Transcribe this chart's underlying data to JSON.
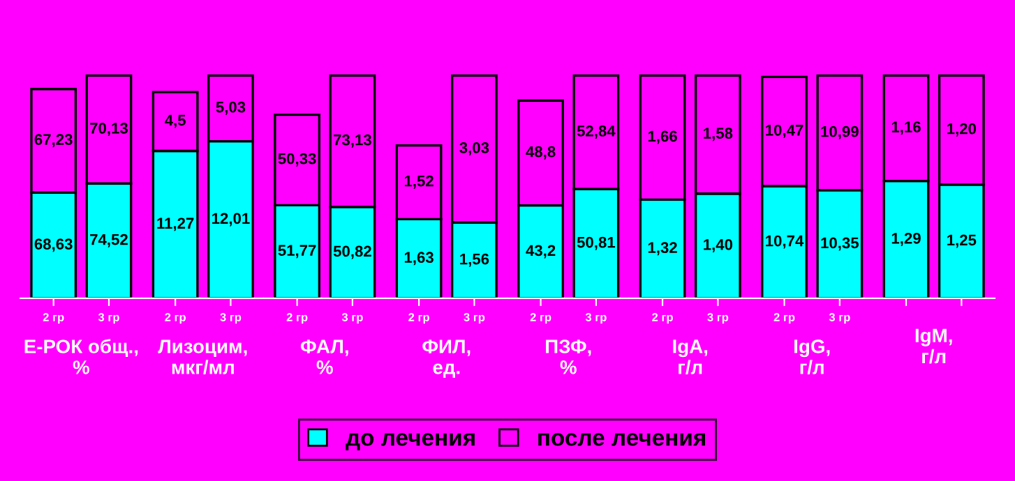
{
  "chart_data": [
    {
      "type": "bar",
      "stacked": true,
      "legend": "bottom",
      "xlabel": "Е-РОК общ., %",
      "categories": [
        "2 гр",
        "3 гр"
      ],
      "series": [
        {
          "name": "до лечения",
          "color": "#00ffff",
          "values": [
            68.63,
            74.52
          ],
          "value_labels": [
            "68,63",
            "74,52"
          ]
        },
        {
          "name": "после лечения",
          "color": "#ff00ff",
          "values": [
            67.23,
            70.13
          ],
          "value_labels": [
            "67,23",
            "70,13"
          ]
        }
      ]
    },
    {
      "type": "bar",
      "stacked": true,
      "xlabel": "Лизоцим, мкг/мл",
      "categories": [
        "2 гр",
        "3 гр"
      ],
      "series": [
        {
          "color": "#00ffff",
          "values": [
            11.27,
            12.01
          ],
          "value_labels": [
            "11,27",
            "12,01"
          ]
        },
        {
          "color": "#ff00ff",
          "values": [
            4.5,
            5.03
          ],
          "value_labels": [
            "4,5",
            "5,03"
          ]
        }
      ]
    },
    {
      "type": "bar",
      "stacked": true,
      "xlabel": "ФАЛ, %",
      "categories": [
        "2 гр",
        "3 гр"
      ],
      "series": [
        {
          "color": "#00ffff",
          "values": [
            51.77,
            50.82
          ],
          "value_labels": [
            "51,77",
            "50,82"
          ]
        },
        {
          "color": "#ff00ff",
          "values": [
            50.33,
            73.13
          ],
          "value_labels": [
            "50,33",
            "73,13"
          ]
        }
      ]
    },
    {
      "type": "bar",
      "stacked": true,
      "xlabel": "ФИЛ, ед.",
      "categories": [
        "2 гр",
        "3 гр"
      ],
      "series": [
        {
          "color": "#00ffff",
          "values": [
            1.63,
            1.56
          ],
          "value_labels": [
            "1,63",
            "1,56"
          ]
        },
        {
          "color": "#ff00ff",
          "values": [
            1.52,
            3.03
          ],
          "value_labels": [
            "1,52",
            "3,03"
          ]
        }
      ]
    },
    {
      "type": "bar",
      "stacked": true,
      "xlabel": "ПЗФ, %",
      "categories": [
        "2 гр",
        "3 гр"
      ],
      "series": [
        {
          "color": "#00ffff",
          "values": [
            43.2,
            50.81
          ],
          "value_labels": [
            "43,2",
            "50,81"
          ]
        },
        {
          "color": "#ff00ff",
          "values": [
            48.8,
            52.84
          ],
          "value_labels": [
            "48,8",
            "52,84"
          ]
        }
      ]
    },
    {
      "type": "bar",
      "stacked": true,
      "xlabel": "IgA, г/л",
      "categories": [
        "2 гр",
        "3 гр"
      ],
      "series": [
        {
          "color": "#00ffff",
          "values": [
            1.32,
            1.4
          ],
          "value_labels": [
            "1,32",
            "1,40"
          ]
        },
        {
          "color": "#ff00ff",
          "values": [
            1.66,
            1.58
          ],
          "value_labels": [
            "1,66",
            "1,58"
          ]
        }
      ]
    },
    {
      "type": "bar",
      "stacked": true,
      "xlabel": "IgG, г/л",
      "categories": [
        "2 гр",
        "3 гр"
      ],
      "series": [
        {
          "color": "#00ffff",
          "values": [
            10.74,
            10.35
          ],
          "value_labels": [
            "10,74",
            "10,35"
          ]
        },
        {
          "color": "#ff00ff",
          "values": [
            10.47,
            10.99
          ],
          "value_labels": [
            "10,47",
            "10,99"
          ]
        }
      ]
    },
    {
      "type": "bar",
      "stacked": true,
      "xlabel": "IgM, г/л",
      "categories": [
        null,
        null
      ],
      "series": [
        {
          "color": "#00ffff",
          "values": [
            1.29,
            1.25
          ],
          "value_labels": [
            "1,29",
            "1,25"
          ]
        },
        {
          "color": "#ff00ff",
          "values": [
            1.16,
            1.2
          ],
          "value_labels": [
            "1,16",
            "1,20"
          ]
        }
      ]
    }
  ]
}
